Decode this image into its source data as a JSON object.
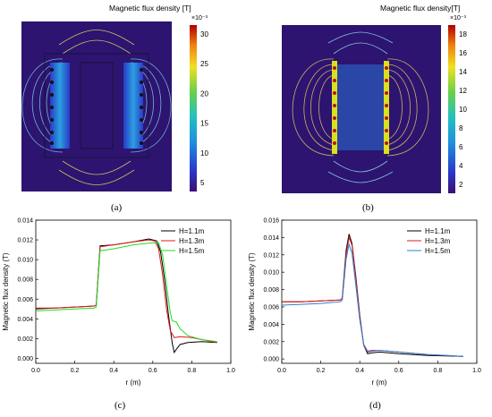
{
  "panels": {
    "a": {
      "label": "(a)",
      "colorbar_title": "Magnetic flux density [T]",
      "colorbar_exponent": "×10⁻³",
      "colorbar_ticks": [
        "30",
        "25",
        "20",
        "15",
        "10",
        "5"
      ]
    },
    "b": {
      "label": "(b)",
      "colorbar_title": "Magnetic flux density[T]",
      "colorbar_exponent": "×10⁻³",
      "colorbar_ticks": [
        "18",
        "16",
        "14",
        "12",
        "10",
        "8",
        "6",
        "4",
        "2"
      ]
    },
    "c": {
      "label": "(c)"
    },
    "d": {
      "label": "(d)"
    }
  },
  "colors": {
    "h11": "#000000",
    "h13": "#e41a1c",
    "h15_c": "#22dd22",
    "h15_d": "#2a7fd4",
    "field_bg": "#2c1470"
  },
  "chart_data": [
    {
      "id": "c",
      "type": "line",
      "xlabel": "r (m)",
      "ylabel": "Magnetic flux density (T)",
      "xlim": [
        0.0,
        1.0
      ],
      "ylim": [
        -0.0005,
        0.014
      ],
      "xticks": [
        "0.0",
        "0.2",
        "0.4",
        "0.6",
        "0.8",
        "1.0"
      ],
      "yticks": [
        "0.000",
        "0.002",
        "0.004",
        "0.006",
        "0.008",
        "0.010",
        "0.012",
        "0.014"
      ],
      "legend_position": "top-right",
      "series": [
        {
          "name": "H=1.1m",
          "color_key": "h11",
          "points": [
            [
              0.0,
              0.005
            ],
            [
              0.1,
              0.0051
            ],
            [
              0.2,
              0.0052
            ],
            [
              0.3,
              0.0053
            ],
            [
              0.31,
              0.0054
            ],
            [
              0.33,
              0.0114
            ],
            [
              0.4,
              0.0115
            ],
            [
              0.5,
              0.0118
            ],
            [
              0.58,
              0.0121
            ],
            [
              0.62,
              0.0119
            ],
            [
              0.64,
              0.0108
            ],
            [
              0.66,
              0.008
            ],
            [
              0.68,
              0.0045
            ],
            [
              0.7,
              0.0015
            ],
            [
              0.71,
              0.0006
            ],
            [
              0.72,
              0.0009
            ],
            [
              0.74,
              0.0014
            ],
            [
              0.78,
              0.0016
            ],
            [
              0.85,
              0.0017
            ],
            [
              0.93,
              0.0016
            ]
          ]
        },
        {
          "name": "H=1.3m",
          "color_key": "h13",
          "points": [
            [
              0.0,
              0.0051
            ],
            [
              0.1,
              0.0051
            ],
            [
              0.2,
              0.0052
            ],
            [
              0.3,
              0.0053
            ],
            [
              0.31,
              0.0054
            ],
            [
              0.33,
              0.0113
            ],
            [
              0.4,
              0.0115
            ],
            [
              0.5,
              0.0118
            ],
            [
              0.58,
              0.012
            ],
            [
              0.61,
              0.0119
            ],
            [
              0.63,
              0.0111
            ],
            [
              0.65,
              0.0085
            ],
            [
              0.67,
              0.005
            ],
            [
              0.69,
              0.0028
            ],
            [
              0.71,
              0.0021
            ],
            [
              0.74,
              0.0022
            ],
            [
              0.8,
              0.0021
            ],
            [
              0.93,
              0.0016
            ]
          ]
        },
        {
          "name": "H=1.5m",
          "color_key": "h15_c",
          "points": [
            [
              0.0,
              0.0048
            ],
            [
              0.1,
              0.0049
            ],
            [
              0.2,
              0.005
            ],
            [
              0.3,
              0.0051
            ],
            [
              0.31,
              0.0052
            ],
            [
              0.33,
              0.0109
            ],
            [
              0.4,
              0.0111
            ],
            [
              0.5,
              0.0115
            ],
            [
              0.6,
              0.0117
            ],
            [
              0.63,
              0.0117
            ],
            [
              0.65,
              0.0105
            ],
            [
              0.67,
              0.0075
            ],
            [
              0.69,
              0.0046
            ],
            [
              0.7,
              0.0038
            ],
            [
              0.72,
              0.0037
            ],
            [
              0.74,
              0.003
            ],
            [
              0.78,
              0.0023
            ],
            [
              0.85,
              0.0019
            ],
            [
              0.93,
              0.0017
            ]
          ]
        }
      ]
    },
    {
      "id": "d",
      "type": "line",
      "xlabel": "r (m)",
      "ylabel": "Magnetic flux density (T)",
      "xlim": [
        0.0,
        1.0
      ],
      "ylim": [
        -0.0005,
        0.016
      ],
      "xticks": [
        "0.0",
        "0.2",
        "0.4",
        "0.6",
        "0.8",
        "1.0"
      ],
      "yticks": [
        "0.000",
        "0.002",
        "0.004",
        "0.006",
        "0.008",
        "0.010",
        "0.012",
        "0.014",
        "0.016"
      ],
      "legend_position": "top-right",
      "series": [
        {
          "name": "H=1.1m",
          "color_key": "h11",
          "points": [
            [
              0.0,
              0.0066
            ],
            [
              0.1,
              0.0066
            ],
            [
              0.2,
              0.0067
            ],
            [
              0.3,
              0.0068
            ],
            [
              0.31,
              0.007
            ],
            [
              0.33,
              0.0125
            ],
            [
              0.345,
              0.0144
            ],
            [
              0.36,
              0.0133
            ],
            [
              0.38,
              0.0095
            ],
            [
              0.4,
              0.005
            ],
            [
              0.42,
              0.0016
            ],
            [
              0.44,
              0.0006
            ],
            [
              0.46,
              0.0007
            ],
            [
              0.5,
              0.0008
            ],
            [
              0.6,
              0.0006
            ],
            [
              0.75,
              0.0004
            ],
            [
              0.93,
              0.0003
            ]
          ]
        },
        {
          "name": "H=1.3m",
          "color_key": "h13",
          "points": [
            [
              0.0,
              0.0066
            ],
            [
              0.1,
              0.0066
            ],
            [
              0.2,
              0.0067
            ],
            [
              0.3,
              0.0068
            ],
            [
              0.31,
              0.007
            ],
            [
              0.33,
              0.012
            ],
            [
              0.345,
              0.014
            ],
            [
              0.36,
              0.0131
            ],
            [
              0.38,
              0.0092
            ],
            [
              0.4,
              0.0048
            ],
            [
              0.42,
              0.0016
            ],
            [
              0.44,
              0.0008
            ],
            [
              0.46,
              0.0009
            ],
            [
              0.5,
              0.001
            ],
            [
              0.6,
              0.0008
            ],
            [
              0.75,
              0.0005
            ],
            [
              0.93,
              0.0003
            ]
          ]
        },
        {
          "name": "H=1.5m",
          "color_key": "h15_d",
          "points": [
            [
              0.0,
              0.0062
            ],
            [
              0.1,
              0.0063
            ],
            [
              0.2,
              0.0064
            ],
            [
              0.3,
              0.0066
            ],
            [
              0.31,
              0.0068
            ],
            [
              0.33,
              0.0115
            ],
            [
              0.345,
              0.0132
            ],
            [
              0.36,
              0.0122
            ],
            [
              0.38,
              0.0085
            ],
            [
              0.4,
              0.0045
            ],
            [
              0.42,
              0.0017
            ],
            [
              0.44,
              0.0009
            ],
            [
              0.46,
              0.001
            ],
            [
              0.5,
              0.001
            ],
            [
              0.6,
              0.0008
            ],
            [
              0.75,
              0.0005
            ],
            [
              0.93,
              0.0003
            ]
          ]
        }
      ]
    }
  ]
}
